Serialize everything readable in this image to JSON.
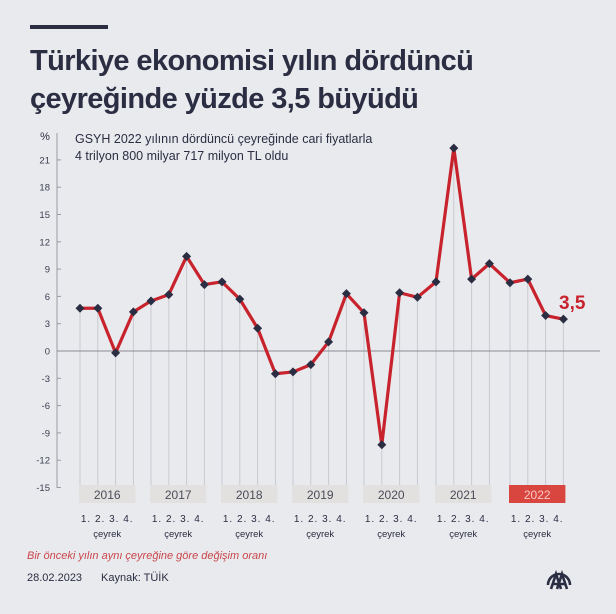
{
  "header": {
    "title_line1": "Türkiye ekonomisi yılın dördüncü",
    "title_line2": "çeyreğinde yüzde 3,5 büyüdü"
  },
  "subtitle": {
    "line1": "GSYH 2022 yılının dördüncü çeyreğinde cari fiyatlarla",
    "line2": "4 trilyon 800 milyar 717 milyon TL oldu"
  },
  "highlight_label": "3,5",
  "footer": {
    "note": "Bir önceki yılın aynı çeyreğine göre değişim oranı",
    "date": "28.02.2023",
    "source": "Kaynak: TÜİK",
    "logo": "aa-logo-icon"
  },
  "colors": {
    "background": "#e9eaee",
    "line": "#c8232c",
    "marker": "#2b2d42",
    "highlight_year_box": "#d9463f",
    "year_box": "#e3e1df",
    "text": "#2b2d42",
    "note": "#c9454a"
  },
  "chart_data": {
    "type": "line",
    "title": "Türkiye ekonomisi yılın dördüncü çeyreğinde yüzde 3,5 büyüdü",
    "subtitle": "GSYH 2022 yılının dördüncü çeyreğinde cari fiyatlarla 4 trilyon 800 milyar 717 milyon TL oldu",
    "ylabel": "%",
    "xlabel": "çeyrek",
    "ylim": [
      -15,
      24
    ],
    "yticks": [
      21,
      18,
      15,
      12,
      9,
      6,
      3,
      0,
      -3,
      -6,
      -9,
      -12,
      -15
    ],
    "grid": false,
    "legend": null,
    "years": [
      "2016",
      "2017",
      "2018",
      "2019",
      "2020",
      "2021",
      "2022"
    ],
    "highlight_year": "2022",
    "quarter_labels": [
      "1.",
      "2.",
      "3.",
      "4."
    ],
    "quarter_caption": "çeyrek",
    "categories": [
      "2016 Q1",
      "2016 Q2",
      "2016 Q3",
      "2016 Q4",
      "2017 Q1",
      "2017 Q2",
      "2017 Q3",
      "2017 Q4",
      "2018 Q1",
      "2018 Q2",
      "2018 Q3",
      "2018 Q4",
      "2019 Q1",
      "2019 Q2",
      "2019 Q3",
      "2019 Q4",
      "2020 Q1",
      "2020 Q2",
      "2020 Q3",
      "2020 Q4",
      "2021 Q1",
      "2021 Q2",
      "2021 Q3",
      "2021 Q4",
      "2022 Q1",
      "2022 Q2",
      "2022 Q3",
      "2022 Q4"
    ],
    "series": [
      {
        "name": "Bir önceki yılın aynı çeyreğine göre değişim oranı",
        "values": [
          4.7,
          4.7,
          -0.2,
          4.3,
          5.5,
          6.2,
          10.4,
          7.3,
          7.6,
          5.7,
          2.5,
          -2.5,
          -2.3,
          -1.5,
          1.0,
          6.3,
          4.2,
          -10.3,
          6.4,
          5.9,
          7.6,
          22.3,
          7.9,
          9.6,
          7.5,
          7.9,
          3.9,
          3.5
        ]
      }
    ],
    "annotations": [
      {
        "category": "2022 Q4",
        "text": "3,5"
      }
    ]
  }
}
